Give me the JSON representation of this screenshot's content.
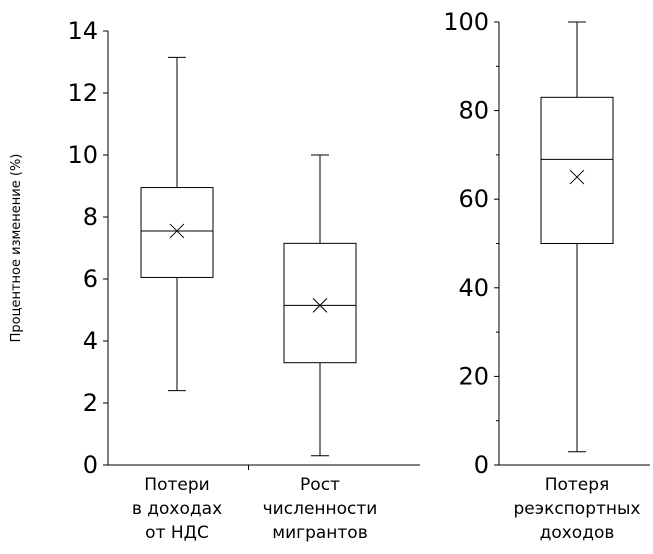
{
  "chart_data": [
    {
      "type": "box",
      "ylabel": "Процентное изменение (%)",
      "ylim": [
        0,
        14
      ],
      "yticks": [
        0,
        2,
        4,
        6,
        8,
        10,
        12,
        14
      ],
      "categories": [
        {
          "label_lines": [
            "Потери",
            "в доходах",
            "от НДС"
          ],
          "min": 2.4,
          "q1": 6.05,
          "median": 7.55,
          "q3": 8.95,
          "max": 13.15,
          "mean": 7.55
        },
        {
          "label_lines": [
            "Рост",
            "численности",
            "мигрантов"
          ],
          "min": 0.3,
          "q1": 3.3,
          "median": 5.15,
          "q3": 7.15,
          "max": 10.0,
          "mean": 5.15
        }
      ]
    },
    {
      "type": "box",
      "ylabel": "",
      "ylim": [
        0,
        100
      ],
      "yticks": [
        0,
        20,
        40,
        60,
        80,
        100
      ],
      "categories": [
        {
          "label_lines": [
            "Потеря",
            "реэкспортных",
            "доходов"
          ],
          "min": 3,
          "q1": 50,
          "median": 69,
          "q3": 83,
          "max": 100,
          "mean": 65
        }
      ]
    }
  ]
}
